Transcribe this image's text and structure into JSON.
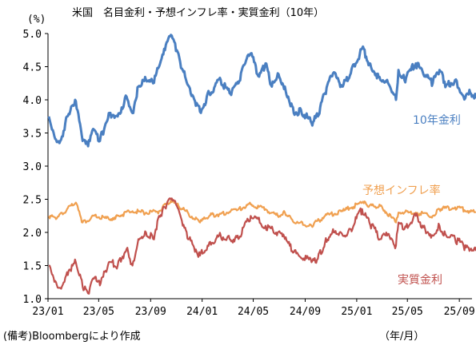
{
  "chart_data": {
    "type": "line",
    "title": "米国　名目金利・予想インフレ率・実質金利（10年）",
    "ylabel": "(%)",
    "xlabel": "（年/月）",
    "source_note": "(備考)Bloombergにより作成",
    "ylim": [
      1.0,
      5.0
    ],
    "yticks": [
      "5.0",
      "4.5",
      "4.0",
      "3.5",
      "3.0",
      "2.5",
      "2.0",
      "1.5",
      "1.0"
    ],
    "xlim": [
      "2023-01",
      "2025-10"
    ],
    "xticks": [
      "23/01",
      "23/05",
      "23/09",
      "24/01",
      "24/05",
      "24/09",
      "25/01",
      "25/05",
      "25/09"
    ],
    "grid": false,
    "series": [
      {
        "name": "10年金利",
        "color": "#4a7fc1",
        "x": [
          "2023-01-03",
          "2023-01-20",
          "2023-02-01",
          "2023-02-15",
          "2023-03-01",
          "2023-03-08",
          "2023-03-24",
          "2023-04-06",
          "2023-04-20",
          "2023-05-04",
          "2023-05-25",
          "2023-06-15",
          "2023-07-06",
          "2023-07-20",
          "2023-08-03",
          "2023-08-21",
          "2023-09-07",
          "2023-09-21",
          "2023-10-05",
          "2023-10-19",
          "2023-11-02",
          "2023-11-16",
          "2023-12-01",
          "2023-12-27",
          "2024-01-18",
          "2024-02-14",
          "2024-03-06",
          "2024-03-27",
          "2024-04-12",
          "2024-04-25",
          "2024-05-15",
          "2024-05-30",
          "2024-06-14",
          "2024-06-28",
          "2024-07-15",
          "2024-08-05",
          "2024-08-22",
          "2024-09-16",
          "2024-10-01",
          "2024-10-18",
          "2024-11-06",
          "2024-11-29",
          "2024-12-18",
          "2025-01-14",
          "2025-01-31",
          "2025-02-26",
          "2025-03-14",
          "2025-04-04",
          "2025-04-10",
          "2025-04-24",
          "2025-05-21",
          "2025-06-12",
          "2025-06-30",
          "2025-07-16",
          "2025-08-01",
          "2025-08-22",
          "2025-09-11",
          "2025-09-25",
          "2025-10-10"
        ],
        "values": [
          3.75,
          3.4,
          3.4,
          3.75,
          3.92,
          3.98,
          3.38,
          3.3,
          3.55,
          3.38,
          3.8,
          3.75,
          4.05,
          3.8,
          4.2,
          4.3,
          4.25,
          4.5,
          4.75,
          4.98,
          4.75,
          4.45,
          4.2,
          3.82,
          4.1,
          4.3,
          4.1,
          4.25,
          4.55,
          4.7,
          4.35,
          4.55,
          4.2,
          4.4,
          4.2,
          3.8,
          3.85,
          3.65,
          3.75,
          4.1,
          4.4,
          4.2,
          4.4,
          4.78,
          4.55,
          4.3,
          4.3,
          4.0,
          4.45,
          4.3,
          4.55,
          4.35,
          4.25,
          4.45,
          4.22,
          4.3,
          4.05,
          4.15,
          4.02
        ]
      },
      {
        "name": "予想インフレ率",
        "color": "#f0a050",
        "x": [
          "2023-01-03",
          "2023-01-20",
          "2023-02-15",
          "2023-03-08",
          "2023-03-24",
          "2023-04-20",
          "2023-05-25",
          "2023-06-15",
          "2023-07-20",
          "2023-08-21",
          "2023-09-21",
          "2023-10-19",
          "2023-11-16",
          "2023-12-27",
          "2024-01-18",
          "2024-02-14",
          "2024-03-27",
          "2024-04-25",
          "2024-05-30",
          "2024-06-28",
          "2024-07-15",
          "2024-08-05",
          "2024-09-16",
          "2024-10-18",
          "2024-11-29",
          "2025-01-14",
          "2025-01-31",
          "2025-02-26",
          "2025-04-04",
          "2025-04-10",
          "2025-05-21",
          "2025-06-30",
          "2025-07-16",
          "2025-08-22",
          "2025-09-25",
          "2025-10-10"
        ],
        "values": [
          2.25,
          2.2,
          2.35,
          2.45,
          2.15,
          2.25,
          2.2,
          2.25,
          2.32,
          2.3,
          2.32,
          2.48,
          2.35,
          2.15,
          2.25,
          2.28,
          2.35,
          2.42,
          2.35,
          2.25,
          2.3,
          2.15,
          2.1,
          2.25,
          2.32,
          2.45,
          2.4,
          2.4,
          2.15,
          2.3,
          2.3,
          2.25,
          2.35,
          2.38,
          2.32,
          2.3
        ]
      },
      {
        "name": "実質金利",
        "color": "#c0504d",
        "x": [
          "2023-01-03",
          "2023-01-20",
          "2023-02-01",
          "2023-02-15",
          "2023-03-08",
          "2023-03-24",
          "2023-04-06",
          "2023-04-20",
          "2023-05-04",
          "2023-05-25",
          "2023-06-15",
          "2023-07-06",
          "2023-07-20",
          "2023-08-03",
          "2023-08-21",
          "2023-09-07",
          "2023-09-21",
          "2023-10-05",
          "2023-10-19",
          "2023-11-02",
          "2023-11-16",
          "2023-12-01",
          "2023-12-27",
          "2024-01-18",
          "2024-02-14",
          "2024-03-06",
          "2024-03-27",
          "2024-04-25",
          "2024-05-30",
          "2024-06-28",
          "2024-07-15",
          "2024-08-05",
          "2024-09-16",
          "2024-10-01",
          "2024-10-18",
          "2024-11-06",
          "2024-11-29",
          "2024-12-18",
          "2025-01-14",
          "2025-01-31",
          "2025-02-26",
          "2025-03-14",
          "2025-04-04",
          "2025-04-10",
          "2025-04-24",
          "2025-05-21",
          "2025-06-12",
          "2025-06-30",
          "2025-07-16",
          "2025-08-01",
          "2025-08-22",
          "2025-09-11",
          "2025-09-25",
          "2025-10-10"
        ],
        "values": [
          1.5,
          1.25,
          1.15,
          1.4,
          1.55,
          1.18,
          1.08,
          1.3,
          1.2,
          1.55,
          1.5,
          1.75,
          1.5,
          1.9,
          2.0,
          1.9,
          2.25,
          2.38,
          2.5,
          2.4,
          2.1,
          1.9,
          1.65,
          1.85,
          1.95,
          1.9,
          1.9,
          2.25,
          2.1,
          2.0,
          1.9,
          1.7,
          1.55,
          1.6,
          1.85,
          2.05,
          1.95,
          2.05,
          2.35,
          2.15,
          1.9,
          1.95,
          1.8,
          2.15,
          2.05,
          2.25,
          2.05,
          1.95,
          2.1,
          1.95,
          1.9,
          1.8,
          1.72,
          1.72
        ]
      }
    ]
  }
}
